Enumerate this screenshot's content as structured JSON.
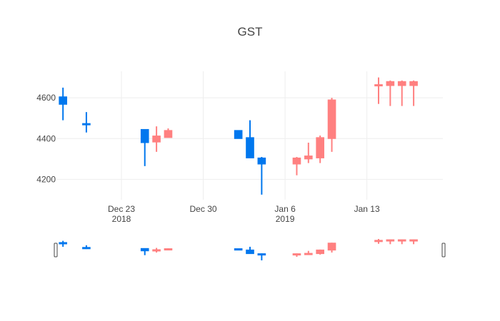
{
  "chart_data": {
    "type": "candlestick",
    "title": "GST",
    "xlabel": "",
    "ylabel": "",
    "ylim": [
      4100,
      4730
    ],
    "xlim": [
      "2018-12-18",
      "2019-01-19"
    ],
    "grid": true,
    "rangeslider": true,
    "y_ticks": [
      4200,
      4400,
      4600
    ],
    "x_ticks": [
      {
        "date": "2018-12-23",
        "label": "Dec 23",
        "sublabel": "2018"
      },
      {
        "date": "2018-12-30",
        "label": "Dec 30",
        "sublabel": ""
      },
      {
        "date": "2019-01-06",
        "label": "Jan 6",
        "sublabel": "2019"
      },
      {
        "date": "2019-01-13",
        "label": "Jan 13",
        "sublabel": ""
      }
    ],
    "colors": {
      "increasing": "#ff8080",
      "decreasing": "#0077ee"
    },
    "candles": [
      {
        "date": "2018-12-18",
        "open": 4605,
        "high": 4650,
        "low": 4490,
        "close": 4568
      },
      {
        "date": "2018-12-20",
        "open": 4474,
        "high": 4530,
        "low": 4430,
        "close": 4467
      },
      {
        "date": "2018-12-25",
        "open": 4445,
        "high": 4445,
        "low": 4265,
        "close": 4380
      },
      {
        "date": "2018-12-26",
        "open": 4383,
        "high": 4460,
        "low": 4335,
        "close": 4413
      },
      {
        "date": "2018-12-27",
        "open": 4405,
        "high": 4450,
        "low": 4405,
        "close": 4440
      },
      {
        "date": "2019-01-02",
        "open": 4440,
        "high": 4440,
        "low": 4400,
        "close": 4400
      },
      {
        "date": "2019-01-03",
        "open": 4405,
        "high": 4490,
        "low": 4305,
        "close": 4305
      },
      {
        "date": "2019-01-04",
        "open": 4305,
        "high": 4310,
        "low": 4125,
        "close": 4275
      },
      {
        "date": "2019-01-07",
        "open": 4275,
        "high": 4310,
        "low": 4220,
        "close": 4305
      },
      {
        "date": "2019-01-08",
        "open": 4300,
        "high": 4380,
        "low": 4280,
        "close": 4315
      },
      {
        "date": "2019-01-09",
        "open": 4305,
        "high": 4415,
        "low": 4280,
        "close": 4405
      },
      {
        "date": "2019-01-10",
        "open": 4400,
        "high": 4600,
        "low": 4335,
        "close": 4590
      },
      {
        "date": "2019-01-14",
        "open": 4658,
        "high": 4700,
        "low": 4570,
        "close": 4665
      },
      {
        "date": "2019-01-15",
        "open": 4660,
        "high": 4685,
        "low": 4560,
        "close": 4680
      },
      {
        "date": "2019-01-16",
        "open": 4660,
        "high": 4685,
        "low": 4560,
        "close": 4680
      },
      {
        "date": "2019-01-17",
        "open": 4660,
        "high": 4685,
        "low": 4560,
        "close": 4680
      }
    ]
  }
}
